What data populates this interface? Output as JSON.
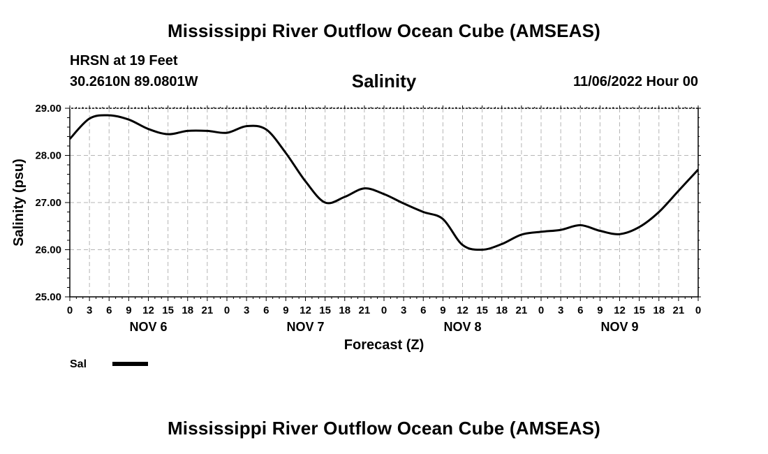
{
  "header": {
    "title": "Mississippi River Outflow Ocean Cube (AMSEAS)",
    "station": "HRSN at 19 Feet",
    "coordinates": "30.2610N  89.0801W",
    "subtitle": "Salinity",
    "datetime": "11/06/2022 Hour 00"
  },
  "footer": {
    "title": "Mississippi River Outflow Ocean Cube (AMSEAS)"
  },
  "chart_data": {
    "type": "line",
    "title": "Salinity",
    "xlabel": "Forecast (Z)",
    "ylabel": "Salinity (psu)",
    "ylim": [
      25.0,
      29.0
    ],
    "xlim": [
      0,
      96
    ],
    "y_ticks": [
      "25.00",
      "26.00",
      "27.00",
      "28.00",
      "29.00"
    ],
    "y_tick_values": [
      25,
      26,
      27,
      28,
      29
    ],
    "x_tick_labels": [
      "0",
      "3",
      "6",
      "9",
      "12",
      "15",
      "18",
      "21",
      "0",
      "3",
      "6",
      "9",
      "12",
      "15",
      "18",
      "21",
      "0",
      "3",
      "6",
      "9",
      "12",
      "15",
      "18",
      "21",
      "0",
      "3",
      "6",
      "9",
      "12",
      "15",
      "18",
      "21",
      "0"
    ],
    "day_labels": [
      {
        "label": "NOV 6",
        "hour": 12
      },
      {
        "label": "NOV 7",
        "hour": 36
      },
      {
        "label": "NOV 8",
        "hour": 60
      },
      {
        "label": "NOV 9",
        "hour": 84
      }
    ],
    "grid": true,
    "series": [
      {
        "name": "Sal",
        "color": "#000000",
        "x": [
          0,
          3,
          6,
          9,
          12,
          15,
          18,
          21,
          24,
          27,
          30,
          33,
          36,
          39,
          42,
          45,
          48,
          51,
          54,
          57,
          60,
          63,
          66,
          69,
          72,
          75,
          78,
          81,
          84,
          87,
          90,
          93,
          96
        ],
        "values": [
          28.35,
          28.78,
          28.85,
          28.76,
          28.56,
          28.45,
          28.52,
          28.52,
          28.48,
          28.62,
          28.55,
          28.05,
          27.45,
          27.0,
          27.12,
          27.3,
          27.18,
          26.98,
          26.8,
          26.65,
          26.1,
          26.0,
          26.12,
          26.32,
          26.38,
          26.42,
          26.52,
          26.4,
          26.33,
          26.48,
          26.8,
          27.25,
          27.7
        ]
      }
    ],
    "legend": [
      {
        "label": "Sal",
        "color": "#000000"
      }
    ],
    "legend_position": "bottom-left"
  }
}
